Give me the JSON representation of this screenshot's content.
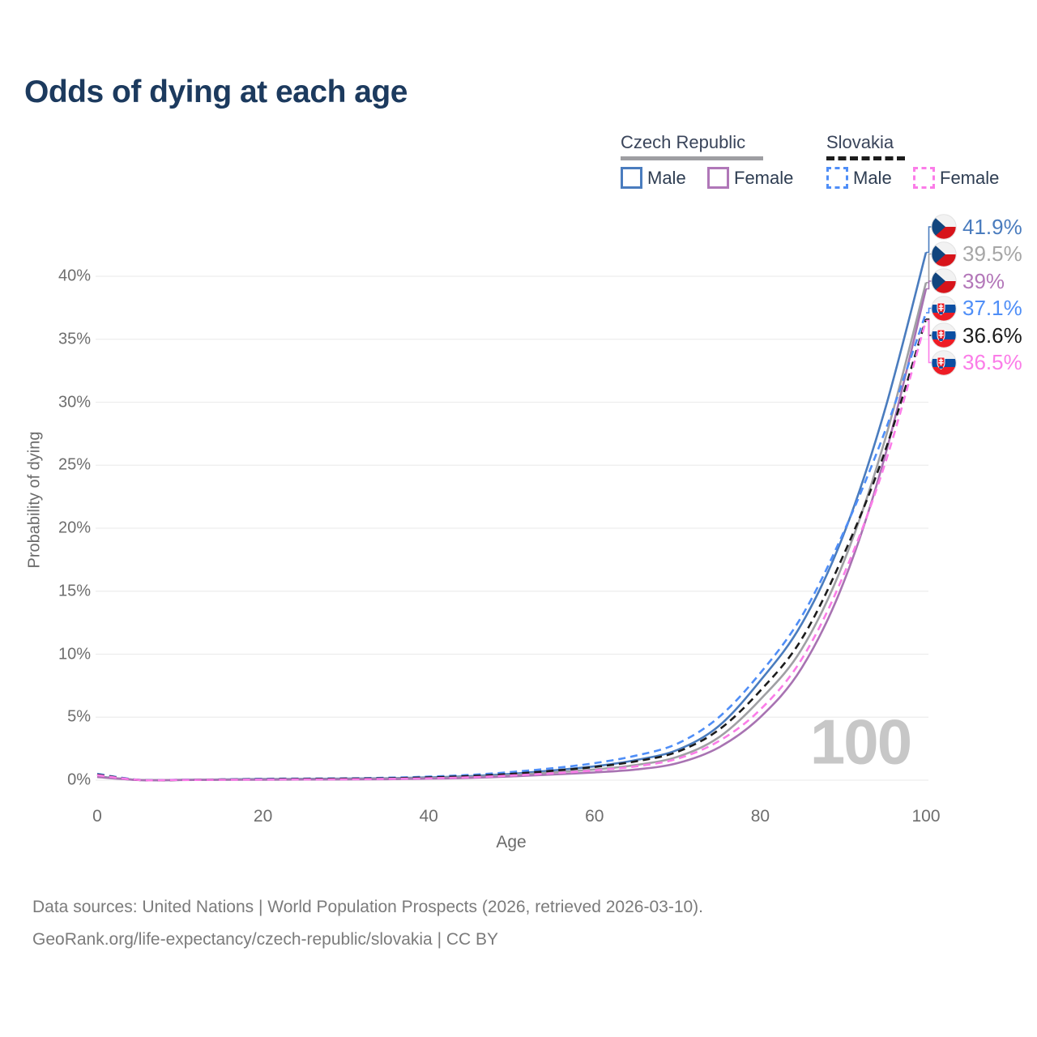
{
  "title": "Odds of dying at each age",
  "watermark": "100",
  "legend": {
    "groups": [
      {
        "label": "Czech Republic",
        "line_style": "solid",
        "underline_color": "#9e9ea2"
      },
      {
        "label": "Slovakia",
        "line_style": "dashed",
        "underline_color": "#1c1c1c"
      }
    ],
    "items": [
      {
        "group": "Czech Republic",
        "label": "Male",
        "color": "#4a7cbe",
        "dashed": false
      },
      {
        "group": "Czech Republic",
        "label": "Female",
        "color": "#b077b8",
        "dashed": false
      },
      {
        "group": "Slovakia",
        "label": "Male",
        "color": "#4f8ef7",
        "dashed": true
      },
      {
        "group": "Slovakia",
        "label": "Female",
        "color": "#fb7ce8",
        "dashed": true
      }
    ]
  },
  "chart_data": {
    "type": "line",
    "title": "Odds of dying at each age",
    "xlabel": "Age",
    "ylabel": "Probability of dying",
    "xlim": [
      0,
      100
    ],
    "ylim": [
      0,
      44
    ],
    "grid": "horizontal",
    "x_ticks": [
      {
        "label": "0",
        "value": 0
      },
      {
        "label": "20",
        "value": 20
      },
      {
        "label": "40",
        "value": 40
      },
      {
        "label": "60",
        "value": 60
      },
      {
        "label": "80",
        "value": 80
      },
      {
        "label": "100",
        "value": 100
      }
    ],
    "y_ticks": [
      {
        "label": "0%",
        "value": 0
      },
      {
        "label": "5%",
        "value": 5
      },
      {
        "label": "10%",
        "value": 10
      },
      {
        "label": "15%",
        "value": 15
      },
      {
        "label": "20%",
        "value": 20
      },
      {
        "label": "25%",
        "value": 25
      },
      {
        "label": "30%",
        "value": 30
      },
      {
        "label": "35%",
        "value": 35
      },
      {
        "label": "40%",
        "value": 40
      }
    ],
    "x": [
      0,
      5,
      10,
      15,
      20,
      25,
      30,
      35,
      40,
      45,
      50,
      55,
      60,
      65,
      70,
      75,
      80,
      85,
      90,
      95,
      100
    ],
    "series": [
      {
        "name": "Czech Republic Male",
        "country": "Czech Republic",
        "sex": "Male",
        "color": "#4a7cbe",
        "dash": "solid",
        "flag": "cz",
        "end_label": "41.9%",
        "end_value": 41.9,
        "end_label_color": "#4a7cbe",
        "values": [
          0.3,
          0.02,
          0.02,
          0.05,
          0.09,
          0.1,
          0.12,
          0.15,
          0.22,
          0.32,
          0.5,
          0.78,
          1.1,
          1.6,
          2.4,
          4.3,
          7.9,
          12.4,
          19.4,
          29.3,
          41.9
        ]
      },
      {
        "name": "Czech Republic Both sexes",
        "country": "Czech Republic",
        "sex": "Both",
        "color": "#a0a0a4",
        "dash": "solid",
        "flag": "cz",
        "end_label": "39.5%",
        "end_value": 39.5,
        "end_label_color": "#a6a6a6",
        "values": [
          0.28,
          0.02,
          0.02,
          0.04,
          0.07,
          0.08,
          0.09,
          0.12,
          0.17,
          0.25,
          0.4,
          0.62,
          0.85,
          1.2,
          1.85,
          3.4,
          6.4,
          10.4,
          17.2,
          26.9,
          39.5
        ]
      },
      {
        "name": "Czech Republic Female",
        "country": "Czech Republic",
        "sex": "Female",
        "color": "#a873b2",
        "dash": "solid",
        "flag": "cz",
        "end_label": "39%",
        "end_value": 39.0,
        "end_label_color": "#b377b9",
        "values": [
          0.25,
          0.01,
          0.01,
          0.03,
          0.04,
          0.05,
          0.06,
          0.08,
          0.12,
          0.18,
          0.3,
          0.45,
          0.62,
          0.85,
          1.35,
          2.6,
          5.0,
          8.9,
          15.6,
          25.6,
          39.0
        ]
      },
      {
        "name": "Slovakia Male",
        "country": "Slovakia",
        "sex": "Male",
        "color": "#4f8ef7",
        "dash": "dashed",
        "flag": "sk",
        "end_label": "37.1%",
        "end_value": 37.1,
        "end_label_color": "#4f8ef7",
        "values": [
          0.5,
          0.03,
          0.03,
          0.06,
          0.11,
          0.13,
          0.15,
          0.19,
          0.28,
          0.42,
          0.65,
          0.95,
          1.35,
          1.95,
          2.9,
          5.0,
          8.5,
          13.0,
          19.6,
          27.6,
          37.1
        ]
      },
      {
        "name": "Slovakia Both sexes",
        "country": "Slovakia",
        "sex": "Both",
        "color": "#1c1c1c",
        "dash": "dashed",
        "flag": "sk",
        "end_label": "36.6%",
        "end_value": 36.6,
        "end_label_color": "#1c1c1c",
        "values": [
          0.45,
          0.02,
          0.02,
          0.05,
          0.08,
          0.1,
          0.12,
          0.15,
          0.22,
          0.33,
          0.5,
          0.75,
          1.05,
          1.5,
          2.25,
          4.0,
          7.1,
          11.2,
          17.8,
          26.0,
          36.6
        ]
      },
      {
        "name": "Slovakia Female",
        "country": "Slovakia",
        "sex": "Female",
        "color": "#fb7ce8",
        "dash": "dashed",
        "flag": "sk",
        "end_label": "36.5%",
        "end_value": 36.5,
        "end_label_color": "#fb7ce8",
        "values": [
          0.4,
          0.02,
          0.02,
          0.03,
          0.05,
          0.06,
          0.07,
          0.1,
          0.15,
          0.23,
          0.37,
          0.55,
          0.78,
          1.1,
          1.7,
          3.1,
          5.6,
          9.6,
          16.2,
          25.0,
          36.5
        ]
      }
    ]
  },
  "footer": {
    "line1": "Data sources: United Nations | World Population Prospects (2026, retrieved 2026-03-10).",
    "line2": "GeoRank.org/life-expectancy/czech-republic/slovakia | CC BY"
  }
}
